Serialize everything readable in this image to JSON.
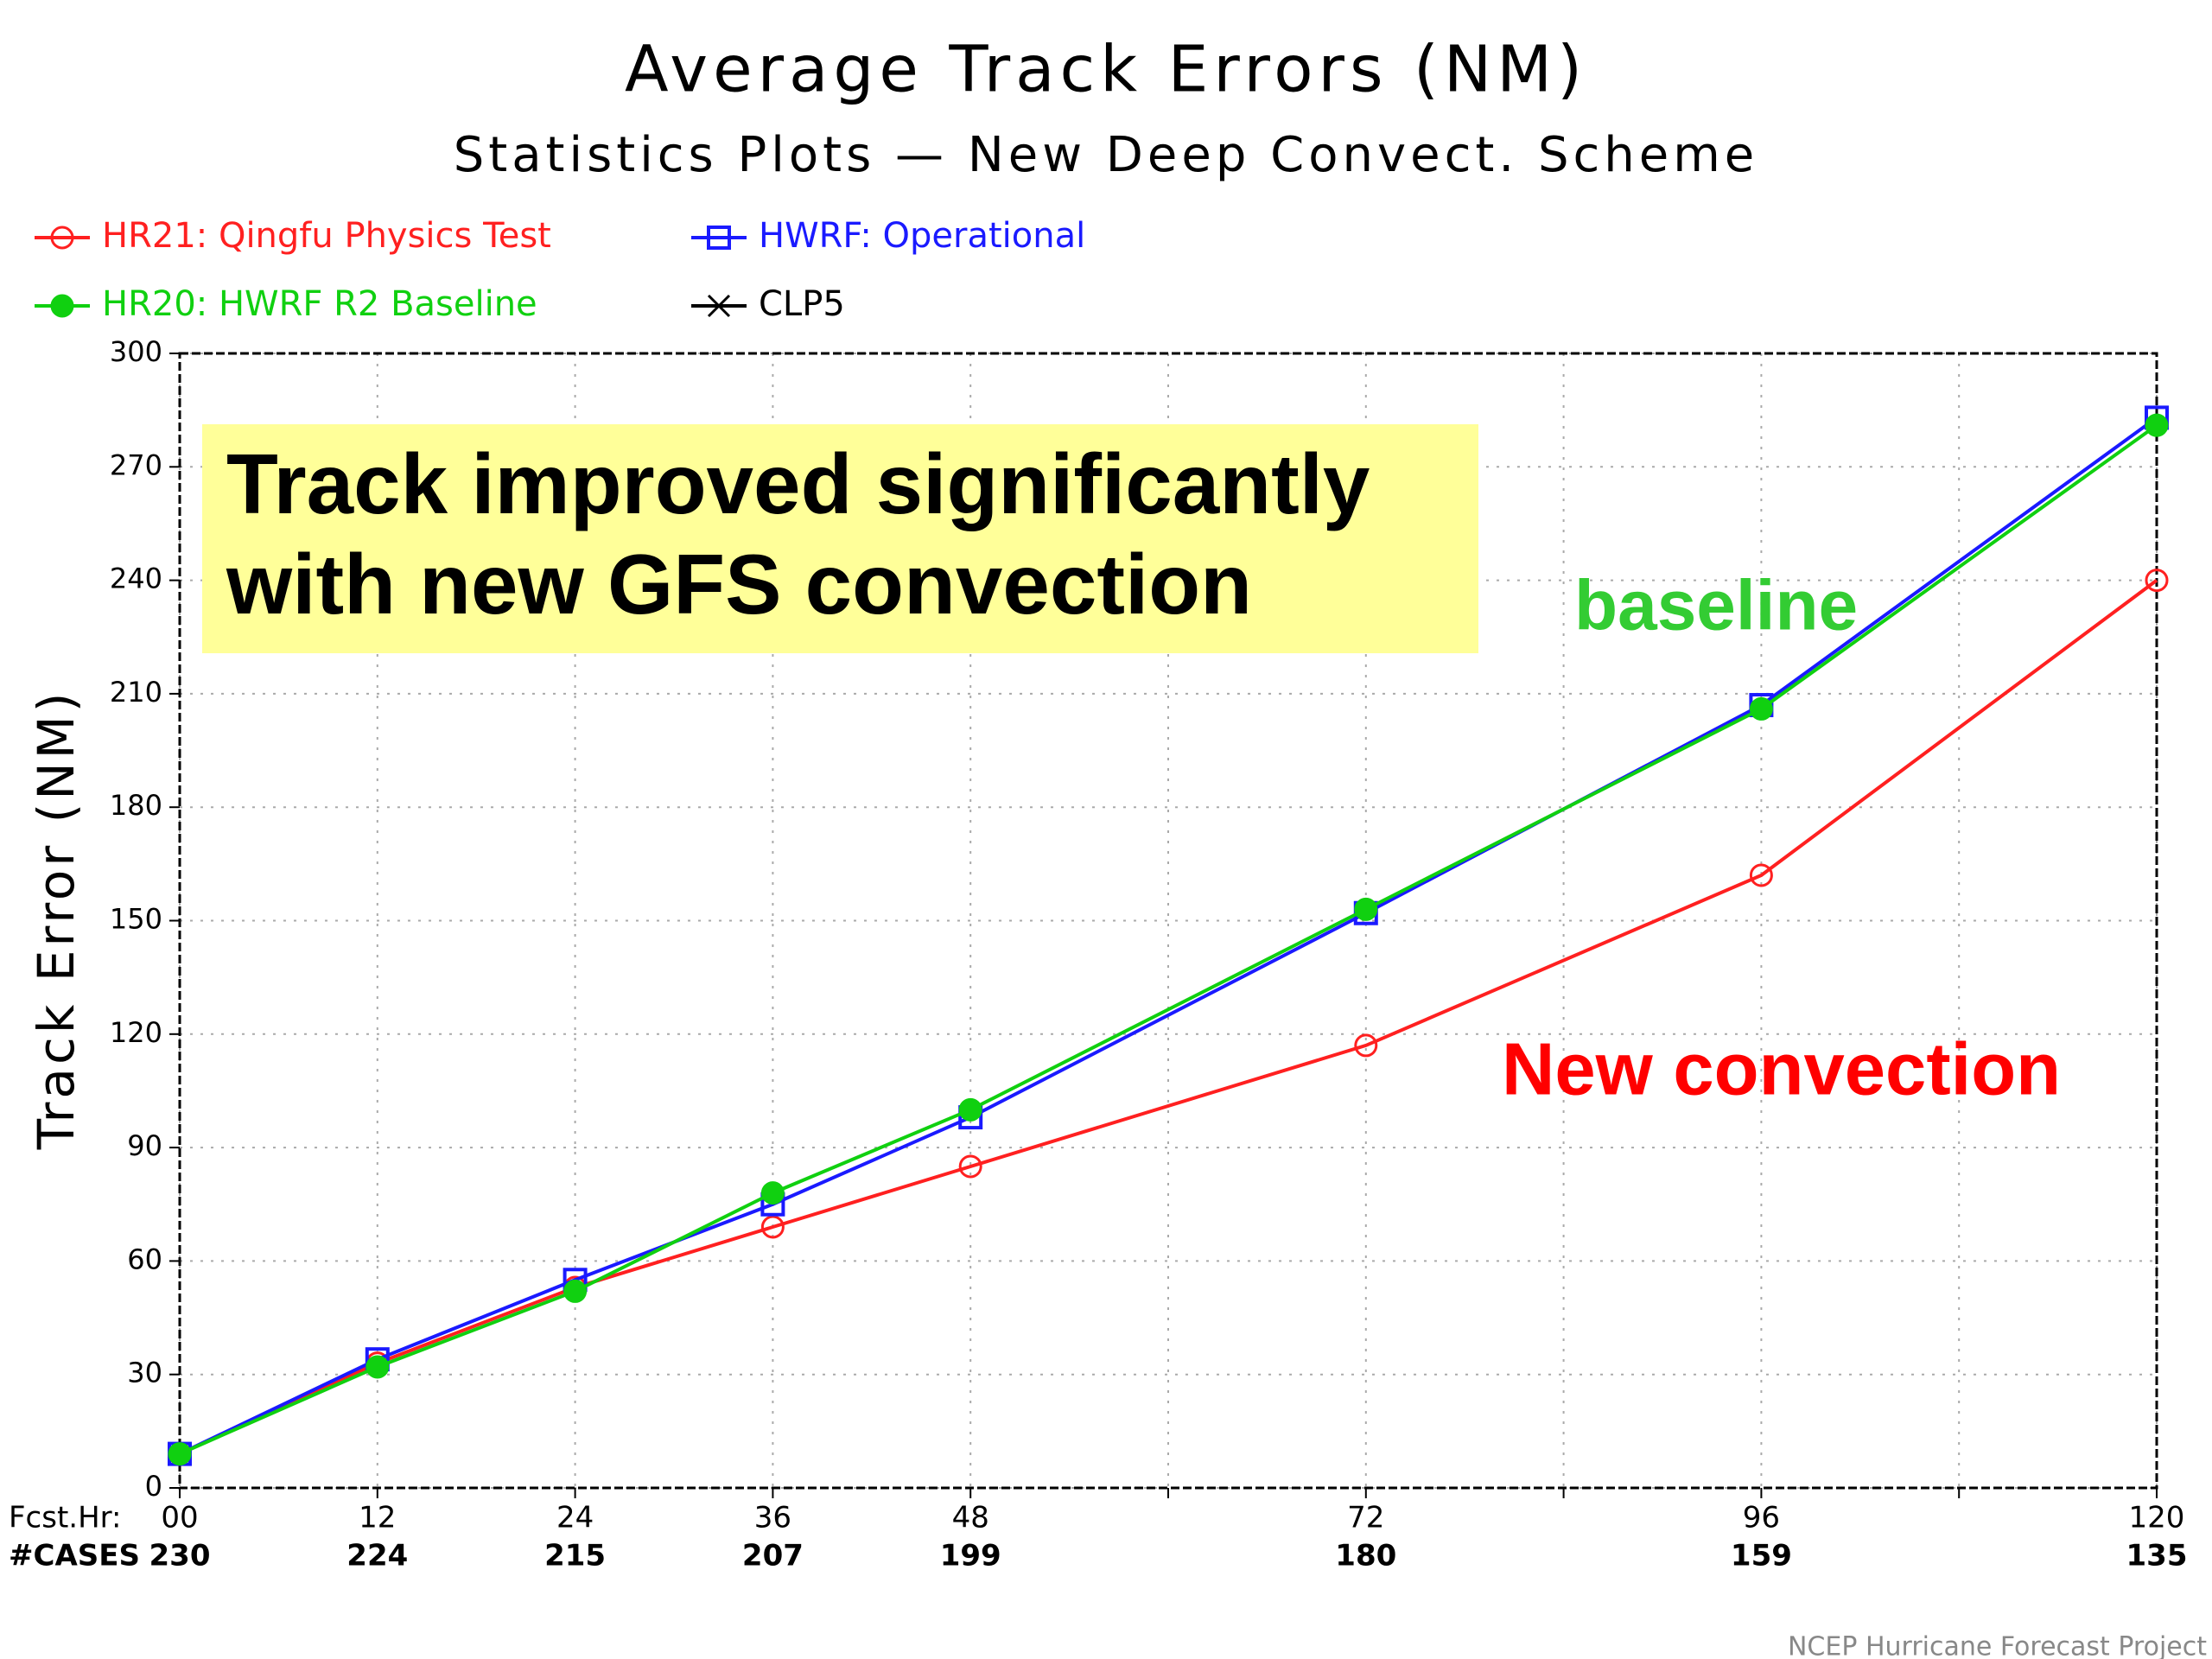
{
  "chart_data": {
    "type": "line",
    "title": "Average Track Errors (NM)",
    "subtitle": "Statistics Plots — New Deep Convect. Scheme",
    "y_label": "Track Error (NM)",
    "x_label": "Fcst.Hr:",
    "cases_label": "#CASES",
    "x": [
      0,
      12,
      24,
      36,
      48,
      72,
      96,
      120
    ],
    "cases": [
      230,
      224,
      215,
      207,
      199,
      180,
      159,
      135
    ],
    "series": [
      {
        "name": "HR21: Qingfu Physics Test",
        "color": "#ff2020",
        "marker": "open-circle",
        "values": [
          9,
          33,
          53,
          69,
          85,
          117,
          162,
          240
        ]
      },
      {
        "name": "HWRF: Operational",
        "color": "#1a1aff",
        "marker": "open-square",
        "values": [
          9,
          34,
          55,
          75,
          98,
          152,
          207,
          283
        ]
      },
      {
        "name": "HR20: HWRF R2 Baseline",
        "color": "#10d010",
        "marker": "filled-circle",
        "values": [
          9,
          32,
          52,
          78,
          100,
          153,
          206,
          281
        ]
      },
      {
        "name": "CLP5",
        "color": "#000000",
        "marker": "star",
        "values": [
          null,
          null,
          null,
          null,
          null,
          null,
          null,
          null
        ]
      }
    ],
    "xlim": [
      0,
      120
    ],
    "xticks": [
      {
        "value": 0,
        "label": "00"
      },
      12,
      24,
      36,
      48,
      {
        "value": 60,
        "label": null
      },
      72,
      {
        "value": 84,
        "label": null
      },
      96,
      {
        "value": 108,
        "label": null
      },
      120
    ],
    "ylim": [
      0,
      300
    ],
    "yticks": [
      0,
      30,
      60,
      90,
      120,
      150,
      180,
      210,
      240,
      270,
      300
    ],
    "grid": true,
    "annotations": [
      {
        "lines": [
          "Track improved significantly",
          "with new GFS convection"
        ],
        "color": "#000000",
        "background": "#ffff99"
      },
      {
        "text": "baseline",
        "color": "#33cc33"
      },
      {
        "text": "New convection",
        "color": "#ff0000"
      }
    ],
    "footer": "NCEP Hurricane Forecast Project"
  }
}
